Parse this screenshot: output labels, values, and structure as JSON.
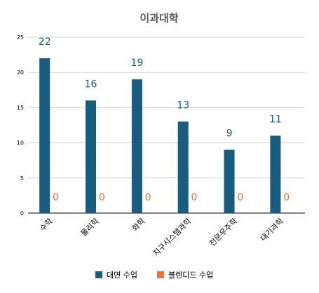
{
  "chart_data": {
    "type": "bar",
    "title": "이과대학",
    "categories": [
      "수학",
      "물리학",
      "화학",
      "지구시스템과학",
      "천문우주학",
      "대기과학"
    ],
    "series": [
      {
        "name": "대면 수업",
        "values": [
          22,
          16,
          19,
          13,
          9,
          11
        ],
        "color": "#185c7f",
        "label_color": "#185c7f"
      },
      {
        "name": "블렌디드 수업",
        "values": [
          0,
          0,
          0,
          0,
          0,
          0
        ],
        "color": "#ea7434",
        "label_color": "#ea7434"
      }
    ],
    "ylim": [
      0,
      25
    ],
    "yticks": [
      0,
      5,
      10,
      15,
      20,
      25
    ],
    "grid": true,
    "legend_position": "bottom",
    "xlabel": "",
    "ylabel": ""
  }
}
